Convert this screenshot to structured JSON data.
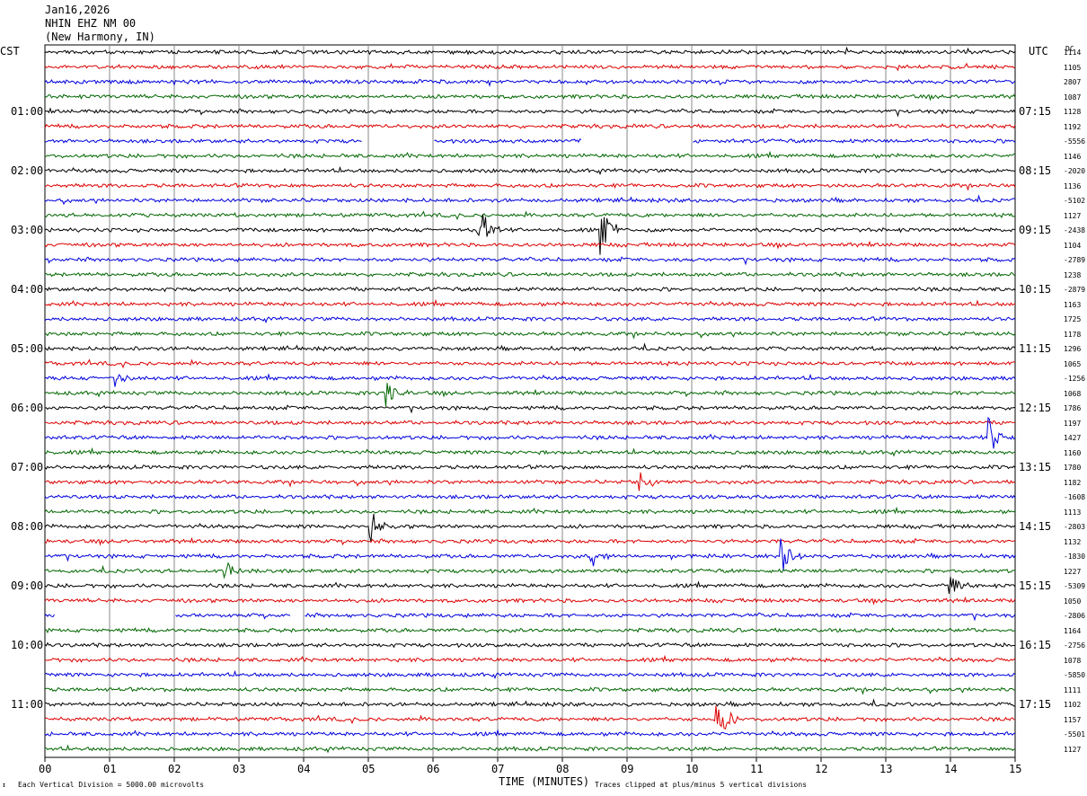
{
  "header": {
    "date": "Jan16,2026",
    "station": "NHIN EHZ NM 00",
    "location": "(New Harmony, IN)"
  },
  "left_tz": "CST",
  "right_tz": "UTC",
  "dc_header": "DC",
  "footer": {
    "left_mark": "↕",
    "scale_note": "Each Vertical Division = 5000.00 microvolts",
    "xlabel": "TIME (MINUTES)",
    "clip_note": "Traces clipped at plus/minus 5 vertical divisions"
  },
  "chart_data": {
    "type": "line",
    "title": "",
    "xlabel": "TIME (MINUTES)",
    "x_ticks": [
      "00",
      "01",
      "02",
      "03",
      "04",
      "05",
      "06",
      "07",
      "08",
      "09",
      "10",
      "11",
      "12",
      "13",
      "14",
      "15"
    ],
    "xlim": [
      0,
      15
    ],
    "trace_count": 48,
    "minutes_per_trace": 15,
    "trace_colors": [
      "#000000",
      "#dd0000",
      "#0000dd",
      "#006600"
    ],
    "grid": "vertical-each-minute",
    "left_hour_labels": [
      {
        "trace": 4,
        "label": "01:00"
      },
      {
        "trace": 8,
        "label": "02:00"
      },
      {
        "trace": 12,
        "label": "03:00"
      },
      {
        "trace": 16,
        "label": "04:00"
      },
      {
        "trace": 20,
        "label": "05:00"
      },
      {
        "trace": 24,
        "label": "06:00"
      },
      {
        "trace": 28,
        "label": "07:00"
      },
      {
        "trace": 32,
        "label": "08:00"
      },
      {
        "trace": 36,
        "label": "09:00"
      },
      {
        "trace": 40,
        "label": "10:00"
      },
      {
        "trace": 44,
        "label": "11:00"
      }
    ],
    "right_hour_labels": [
      {
        "trace": 4,
        "label": "07:15"
      },
      {
        "trace": 8,
        "label": "08:15"
      },
      {
        "trace": 12,
        "label": "09:15"
      },
      {
        "trace": 16,
        "label": "10:15"
      },
      {
        "trace": 20,
        "label": "11:15"
      },
      {
        "trace": 24,
        "label": "12:15"
      },
      {
        "trace": 28,
        "label": "13:15"
      },
      {
        "trace": 32,
        "label": "14:15"
      },
      {
        "trace": 36,
        "label": "15:15"
      },
      {
        "trace": 40,
        "label": "16:15"
      },
      {
        "trace": 44,
        "label": "17:15"
      }
    ],
    "dc_values": [
      "1114",
      "1105",
      "2807",
      "1087",
      "1128",
      "1192",
      "-5556",
      "1146",
      "-2020",
      "1136",
      "-5102",
      "1127",
      "-2438",
      "1104",
      "-2789",
      "1238",
      "-2879",
      "1163",
      "1725",
      "1178",
      "1296",
      "1065",
      "-1256",
      "1068",
      "1786",
      "1197",
      "1427",
      "1160",
      "1780",
      "1182",
      "-1608",
      "1113",
      "-2803",
      "1132",
      "-1830",
      "1227",
      "-5309",
      "1050",
      "-2806",
      "1164",
      "-2756",
      "1078",
      "-5850",
      "1111",
      "1102",
      "1157",
      "-5501",
      "1127"
    ],
    "data_gaps": [
      {
        "trace": 6,
        "from_min": 4.9,
        "to_min": 6.0
      },
      {
        "trace": 6,
        "from_min": 8.3,
        "to_min": 10.0
      },
      {
        "trace": 38,
        "from_min": 0.15,
        "to_min": 2.0
      },
      {
        "trace": 38,
        "from_min": 3.8,
        "to_min": 4.0
      }
    ],
    "events": [
      {
        "trace": 12,
        "minute": 6.7,
        "amplitude": 2.6
      },
      {
        "trace": 12,
        "minute": 8.6,
        "amplitude": 2.4
      },
      {
        "trace": 22,
        "minute": 1.1,
        "amplitude": 0.8
      },
      {
        "trace": 23,
        "minute": 5.3,
        "amplitude": 1.0
      },
      {
        "trace": 26,
        "minute": 14.6,
        "amplitude": 1.3
      },
      {
        "trace": 29,
        "minute": 9.2,
        "amplitude": 0.8
      },
      {
        "trace": 32,
        "minute": 5.05,
        "amplitude": 1.1
      },
      {
        "trace": 34,
        "minute": 8.45,
        "amplitude": 1.0
      },
      {
        "trace": 34,
        "minute": 11.4,
        "amplitude": 1.2
      },
      {
        "trace": 35,
        "minute": 2.8,
        "amplitude": 0.7
      },
      {
        "trace": 36,
        "minute": 14.0,
        "amplitude": 0.8
      },
      {
        "trace": 45,
        "minute": 10.4,
        "amplitude": 1.9
      }
    ]
  }
}
